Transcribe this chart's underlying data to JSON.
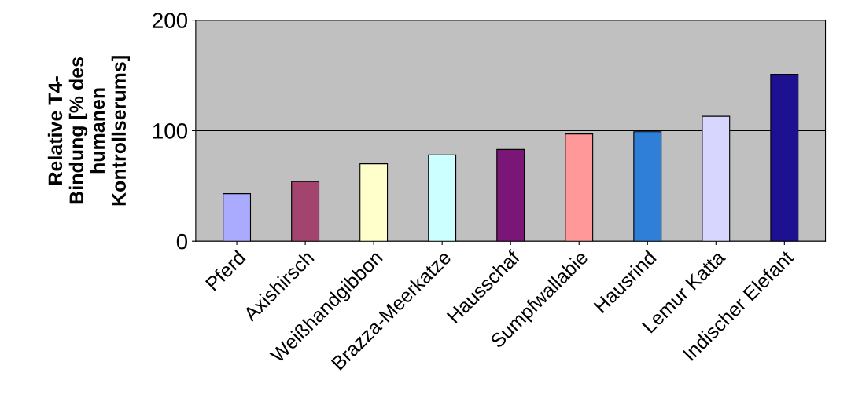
{
  "chart_data": {
    "type": "bar",
    "ylabel": "Relative T4-\nBindung [% des\nhumanen\nKontrollserums]",
    "categories": [
      "Pferd",
      "Axishirsch",
      "Weißhandgibbon",
      "Brazza-Meerkatze",
      "Hausschaf",
      "Sumpfwallabie",
      "Hausrind",
      "Lemur Katta",
      "Indischer Elefant"
    ],
    "values": [
      43,
      54,
      70,
      78,
      83,
      97,
      99,
      113,
      151
    ],
    "colors": [
      "#aaaaff",
      "#a3446e",
      "#ffffcc",
      "#ccffff",
      "#7a1677",
      "#ff9999",
      "#2f7fd8",
      "#d6d6ff",
      "#1e1191"
    ],
    "ylim": [
      0,
      200
    ],
    "yticks": [
      0,
      100,
      200
    ],
    "grid": "y"
  }
}
